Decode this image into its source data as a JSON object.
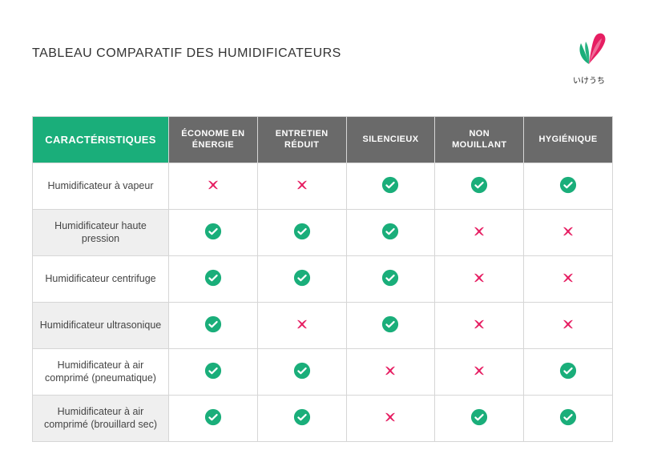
{
  "title": "TABLEAU COMPARATIF DES HUMIDIFICATEURS",
  "logo": {
    "text": "いけうち",
    "leaf_color": "#1aae7a",
    "petal_color": "#e61e62"
  },
  "colors": {
    "header_first_bg": "#1aae7a",
    "header_col_bg": "#6a6a6a",
    "header_text": "#ffffff",
    "border": "#d6d6d6",
    "row_alt_bg": "#efefef",
    "check_bg": "#1aae7a",
    "check_mark": "#ffffff",
    "cross_color": "#e61e62",
    "text": "#444"
  },
  "table": {
    "type": "table",
    "first_header": "CARACTÉRISTIQUES",
    "columns": [
      "ÉCONOME EN ÉNERGIE",
      "ENTRETIEN RÉDUIT",
      "SILENCIEUX",
      "NON MOUILLANT",
      "HYGIÉNIQUE"
    ],
    "rows": [
      {
        "label": "Humidificateur à vapeur",
        "values": [
          "cross",
          "cross",
          "check",
          "check",
          "check"
        ]
      },
      {
        "label": "Humidificateur haute pression",
        "values": [
          "check",
          "check",
          "check",
          "cross",
          "cross"
        ]
      },
      {
        "label": "Humidificateur centrifuge",
        "values": [
          "check",
          "check",
          "check",
          "cross",
          "cross"
        ]
      },
      {
        "label": "Humidificateur ultrasonique",
        "values": [
          "check",
          "cross",
          "check",
          "cross",
          "cross"
        ]
      },
      {
        "label": "Humidificateur à air comprimé (pneumatique)",
        "values": [
          "check",
          "check",
          "cross",
          "cross",
          "check"
        ]
      },
      {
        "label": "Humidificateur à air comprimé (brouillard sec)",
        "values": [
          "check",
          "check",
          "cross",
          "check",
          "check"
        ]
      }
    ]
  }
}
